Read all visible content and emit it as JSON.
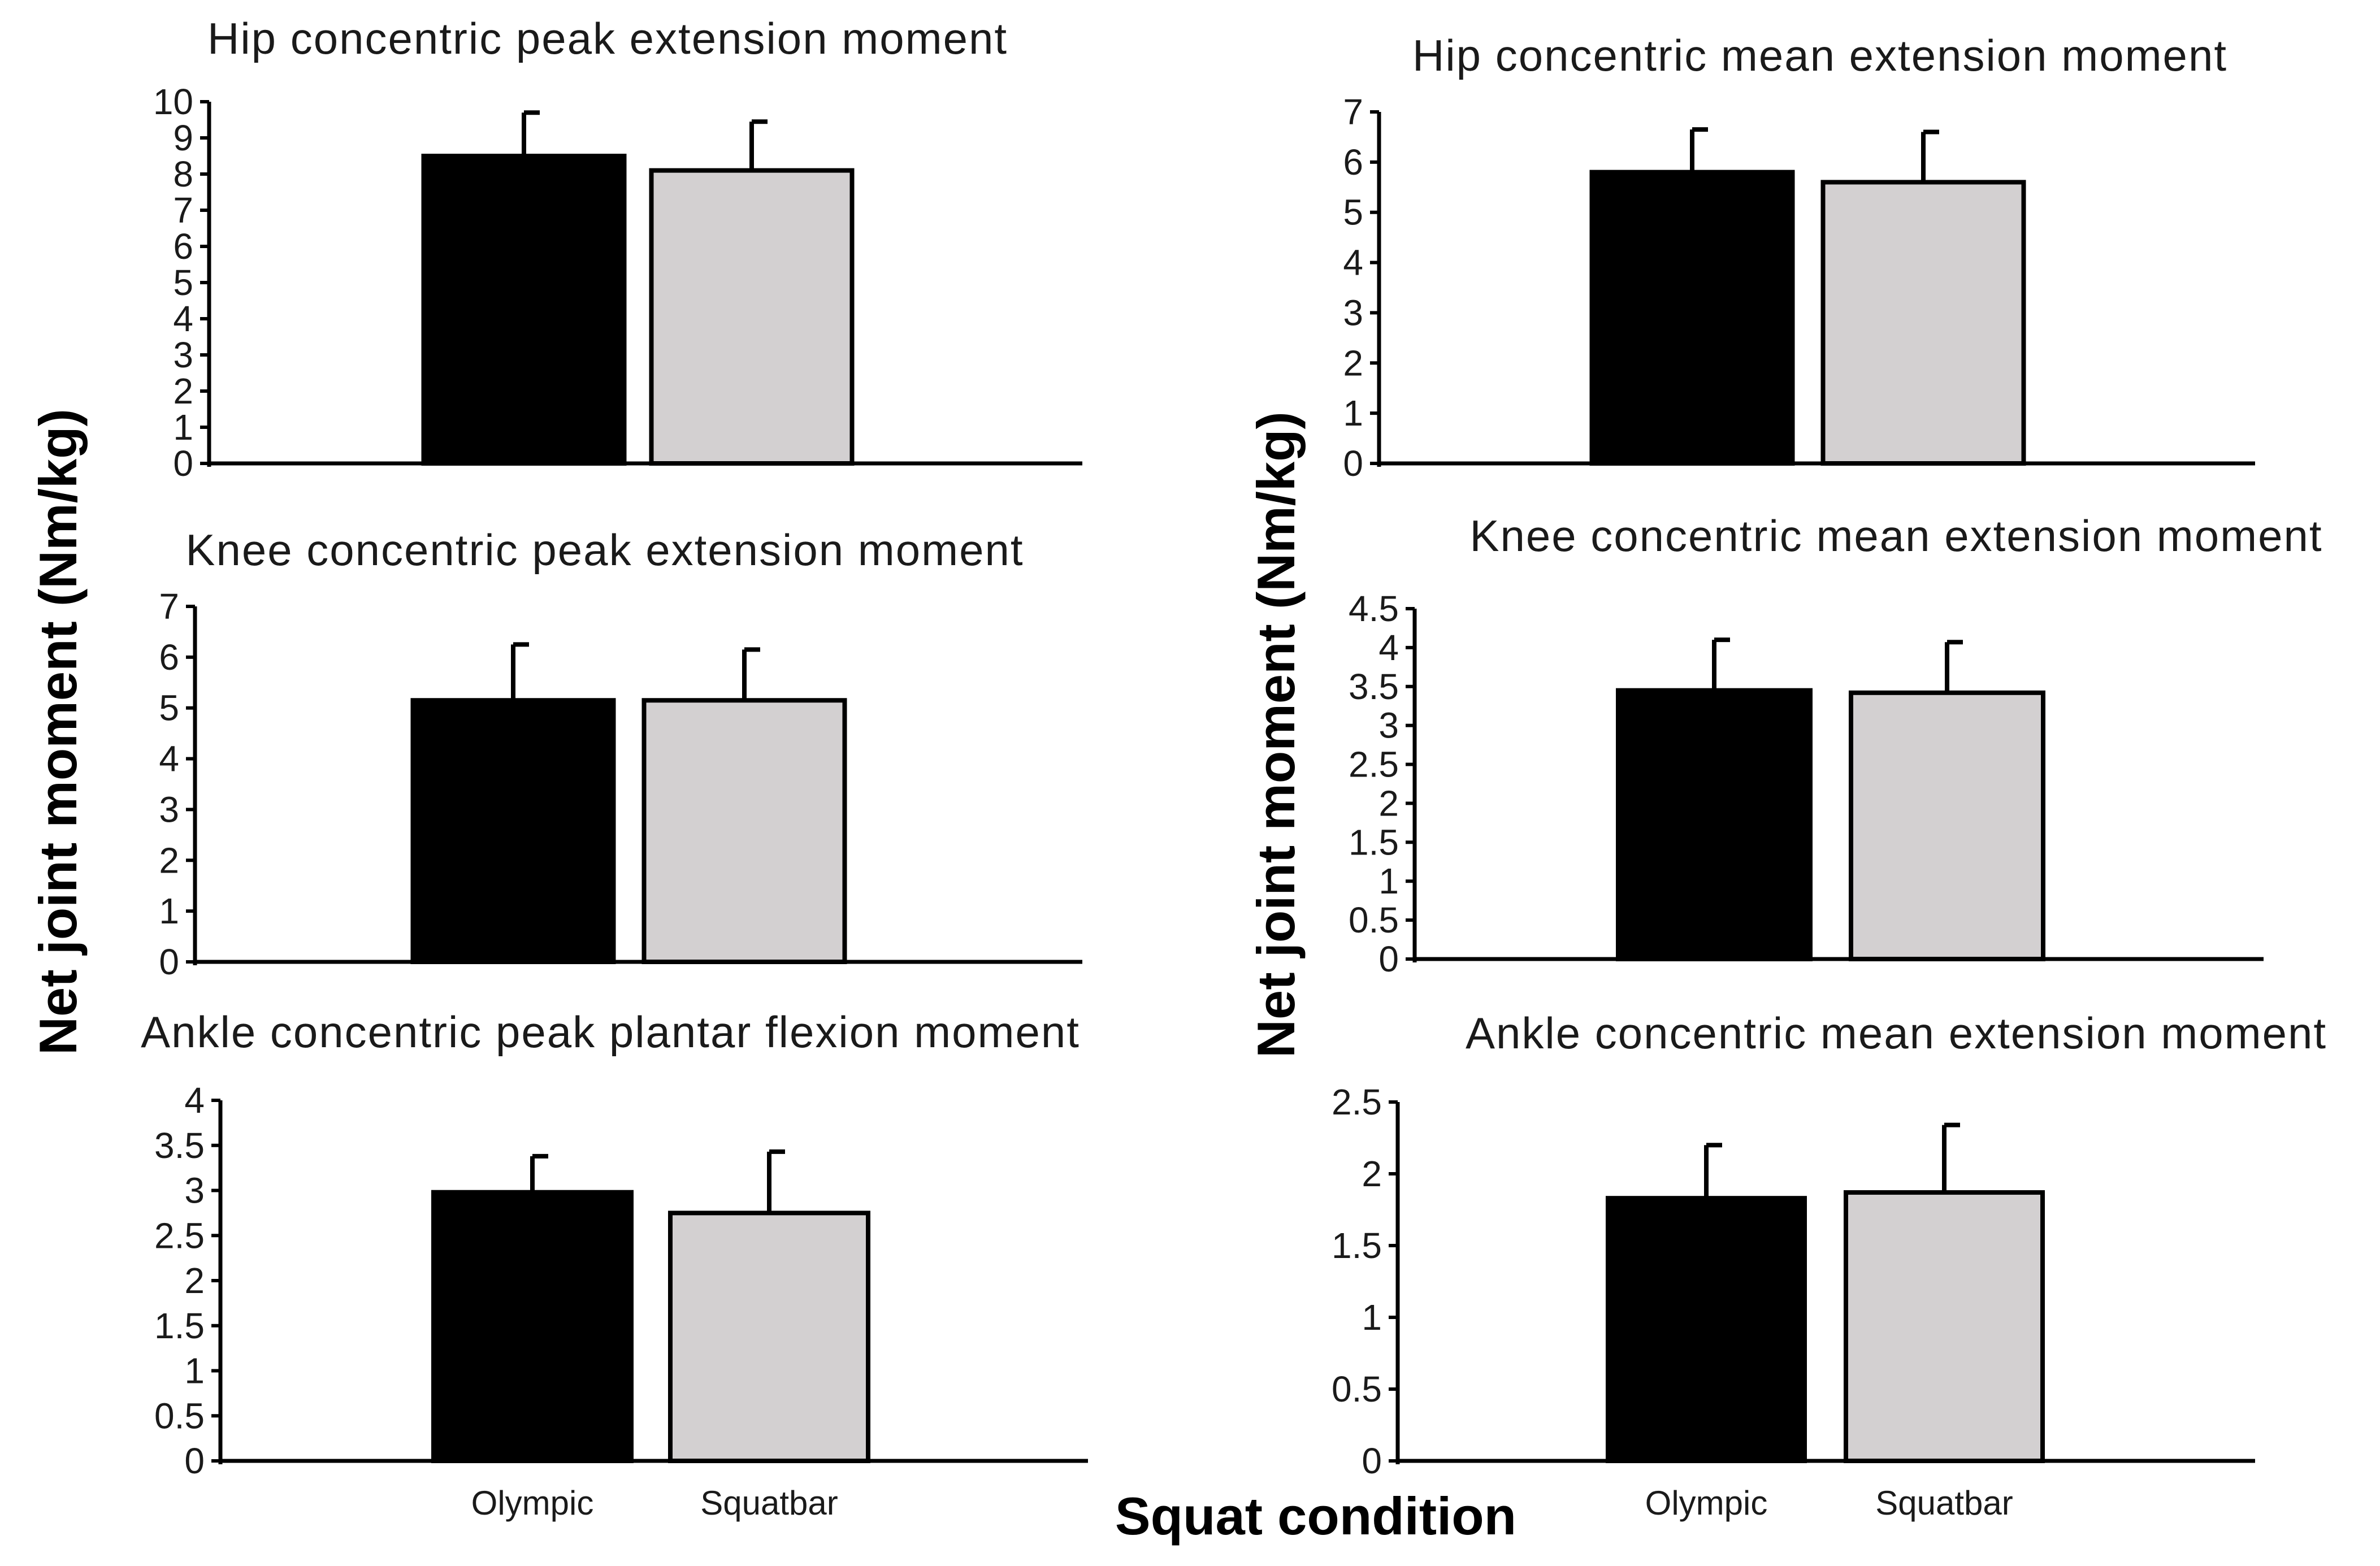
{
  "figure": {
    "ylabel": "Net joint moment (Nm/kg)",
    "xlabel": "Squat condition",
    "colors": {
      "bar_olympic": "#000000",
      "bar_squatbar": "#d3d0d1",
      "stroke": "#000000"
    }
  },
  "chart_data": [
    {
      "type": "bar",
      "title": "Hip concentric peak extension moment",
      "categories": [
        "Olympic",
        "Squatbar"
      ],
      "values": [
        8.5,
        8.1
      ],
      "errors": [
        1.2,
        1.35
      ],
      "ylim": [
        0,
        10
      ],
      "ticks": [
        "0",
        "1",
        "2",
        "3",
        "4",
        "5",
        "6",
        "7",
        "8",
        "9",
        "10"
      ],
      "show_category_labels": false
    },
    {
      "type": "bar",
      "title": "Hip concentric mean extension moment",
      "categories": [
        "Olympic",
        "Squatbar"
      ],
      "values": [
        5.8,
        5.6
      ],
      "errors": [
        0.85,
        1.0
      ],
      "ylim": [
        0,
        7
      ],
      "ticks": [
        "0",
        "1",
        "2",
        "3",
        "4",
        "5",
        "6",
        "7"
      ],
      "show_category_labels": false
    },
    {
      "type": "bar",
      "title": "Knee concentric peak extension moment",
      "categories": [
        "Olympic",
        "Squatbar"
      ],
      "values": [
        5.15,
        5.15
      ],
      "errors": [
        1.1,
        1.0
      ],
      "ylim": [
        0,
        7
      ],
      "ticks": [
        "0",
        "1",
        "2",
        "3",
        "4",
        "5",
        "6",
        "7"
      ],
      "show_category_labels": false
    },
    {
      "type": "bar",
      "title": "Knee concentric mean extension moment",
      "categories": [
        "Olympic",
        "Squatbar"
      ],
      "values": [
        3.45,
        3.42
      ],
      "errors": [
        0.65,
        0.65
      ],
      "ylim": [
        0,
        4.5
      ],
      "ticks": [
        "0",
        "0.5",
        "1",
        "1.5",
        "2",
        "2.5",
        "3",
        "3.5",
        "4",
        "4.5"
      ],
      "show_category_labels": false
    },
    {
      "type": "bar",
      "title": "Ankle concentric peak plantar flexion moment",
      "categories": [
        "Olympic",
        "Squatbar"
      ],
      "values": [
        2.98,
        2.75
      ],
      "errors": [
        0.4,
        0.68
      ],
      "ylim": [
        0,
        4
      ],
      "ticks": [
        "0",
        "0.5",
        "1",
        "1.5",
        "2",
        "2.5",
        "3",
        "3.5",
        "4"
      ],
      "show_category_labels": true
    },
    {
      "type": "bar",
      "title": "Ankle concentric mean extension moment",
      "categories": [
        "Olympic",
        "Squatbar"
      ],
      "values": [
        1.83,
        1.87
      ],
      "errors": [
        0.37,
        0.47
      ],
      "ylim": [
        0,
        2.5
      ],
      "ticks": [
        "0",
        "0.5",
        "1",
        "1.5",
        "2",
        "2.5"
      ],
      "show_category_labels": true
    }
  ]
}
